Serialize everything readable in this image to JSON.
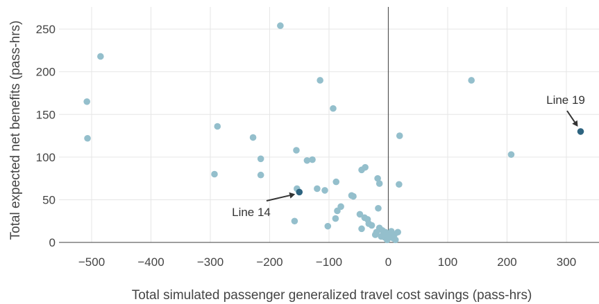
{
  "chart_data": {
    "type": "scatter",
    "title": "",
    "xlabel": "Total simulated passenger generalized travel cost savings (pass-hrs)",
    "ylabel": "Total expected net benefits (pass-hrs)",
    "xlim": [
      -555,
      355
    ],
    "ylim": [
      -4,
      276
    ],
    "x_ticks": [
      -500,
      -400,
      -300,
      -200,
      -100,
      0,
      100,
      200,
      300
    ],
    "y_ticks": [
      0,
      50,
      100,
      150,
      200,
      250
    ],
    "x_tick_labels": [
      "−500",
      "−400",
      "−300",
      "−200",
      "−100",
      "0",
      "100",
      "200",
      "300"
    ],
    "y_tick_labels": [
      "0",
      "50",
      "100",
      "150",
      "200",
      "250"
    ],
    "grid": true,
    "colors": {
      "points": "#94bfcc",
      "highlight": "#2e6480",
      "zero_line": "#555555",
      "grid": "#e6e6e6"
    },
    "series": [
      {
        "points": [
          [
            -182,
            254
          ],
          [
            -485,
            218
          ],
          [
            -508,
            165
          ],
          [
            -507,
            122
          ],
          [
            -115,
            190
          ],
          [
            -93,
            157
          ],
          [
            -288,
            136
          ],
          [
            -228,
            123
          ],
          [
            -215,
            98
          ],
          [
            -215,
            79
          ],
          [
            -293,
            80
          ],
          [
            -155,
            108
          ],
          [
            -137,
            96
          ],
          [
            -128,
            97
          ],
          [
            -154,
            63
          ],
          [
            -120,
            63
          ],
          [
            -107,
            61
          ],
          [
            -88,
            71
          ],
          [
            -45,
            85
          ],
          [
            -39,
            88
          ],
          [
            -62,
            55
          ],
          [
            -59,
            54
          ],
          [
            -18,
            75
          ],
          [
            -15,
            69
          ],
          [
            19,
            125
          ],
          [
            18,
            68
          ],
          [
            140,
            190
          ],
          [
            207,
            103
          ],
          [
            -80,
            42
          ],
          [
            -86,
            37
          ],
          [
            -89,
            28
          ],
          [
            -102,
            19
          ],
          [
            -158,
            25
          ],
          [
            -17,
            40
          ],
          [
            -48,
            33
          ],
          [
            -40,
            29
          ],
          [
            -35,
            27
          ],
          [
            -33,
            22
          ],
          [
            -28,
            20
          ],
          [
            -45,
            16
          ],
          [
            -15,
            17
          ],
          [
            -10,
            14
          ],
          [
            -5,
            12
          ],
          [
            0,
            10
          ],
          [
            5,
            13
          ],
          [
            10,
            9
          ],
          [
            16,
            12
          ],
          [
            -22,
            9
          ],
          [
            -12,
            7
          ],
          [
            -6,
            6
          ],
          [
            3,
            6
          ],
          [
            8,
            5
          ],
          [
            12,
            3
          ],
          [
            -2,
            3
          ],
          [
            -20,
            12
          ]
        ]
      },
      {
        "points": [
          [
            -150,
            59
          ],
          [
            324,
            130
          ]
        ]
      }
    ],
    "annotations": [
      {
        "text": "Line 14",
        "target": [
          -150,
          59
        ]
      },
      {
        "text": "Line 19",
        "target": [
          324,
          130
        ]
      }
    ]
  }
}
